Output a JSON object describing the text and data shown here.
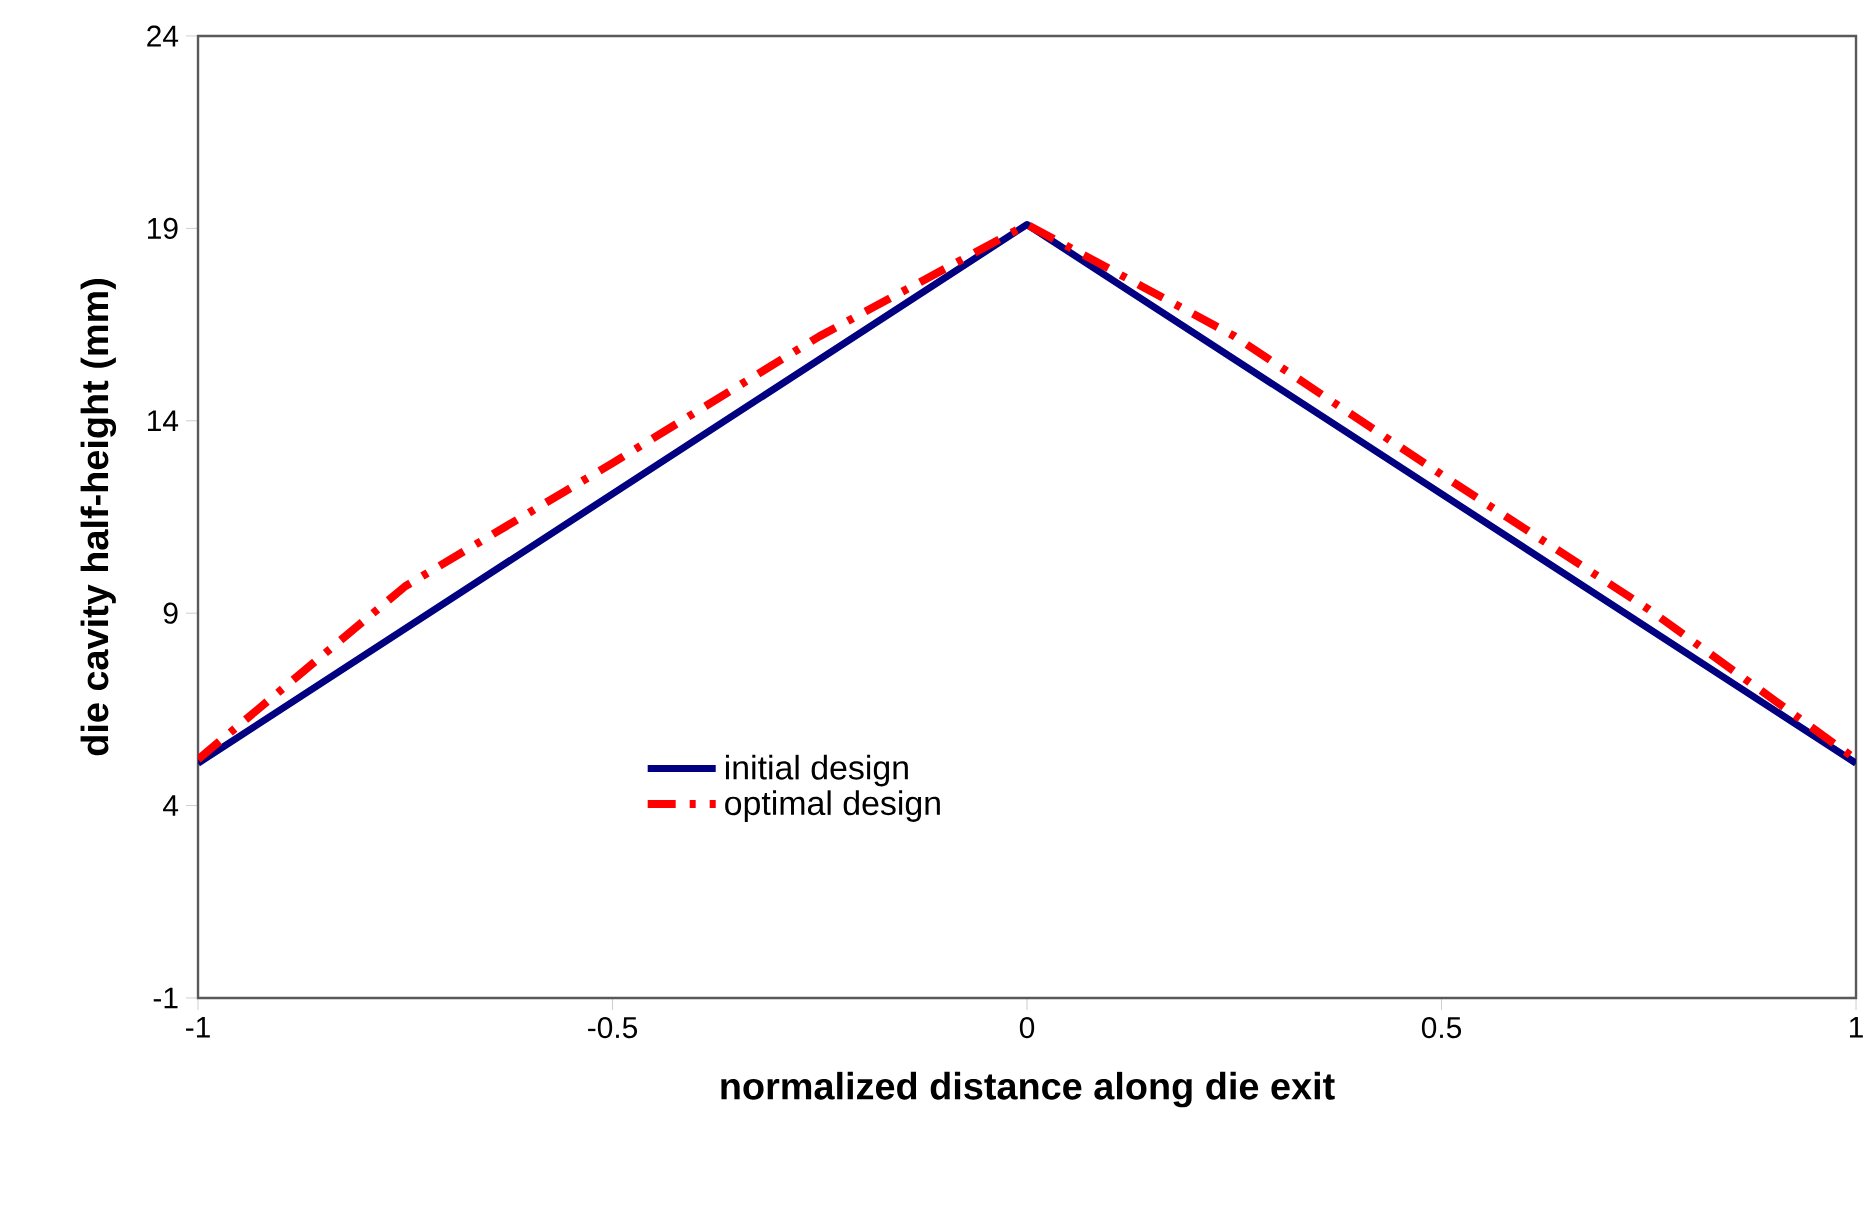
{
  "chart_data": {
    "type": "line",
    "xlabel": "normalized distance along die exit",
    "ylabel": "die cavity half-height (mm)",
    "xlim": [
      -1,
      1
    ],
    "xticks": [
      -1,
      -0.5,
      0,
      0.5,
      1
    ],
    "ylim": [
      -1,
      24
    ],
    "yticks": [
      -1,
      4,
      9,
      14,
      19,
      24
    ],
    "grid": false,
    "legend": "bottom",
    "series": [
      {
        "name": "initial design",
        "color": "#000080",
        "line_style": "solid",
        "x": [
          -1,
          0,
          1
        ],
        "values": [
          5.1,
          19.1,
          5.1
        ]
      },
      {
        "name": "optimal design",
        "color": "#ff0000",
        "line_style": "dashdot",
        "x": [
          -1,
          -0.75,
          -0.5,
          -0.25,
          0,
          0.25,
          0.5,
          0.75,
          1
        ],
        "values": [
          5.2,
          9.7,
          12.9,
          16.2,
          19.1,
          16.2,
          12.6,
          9.1,
          5.2
        ]
      }
    ]
  }
}
